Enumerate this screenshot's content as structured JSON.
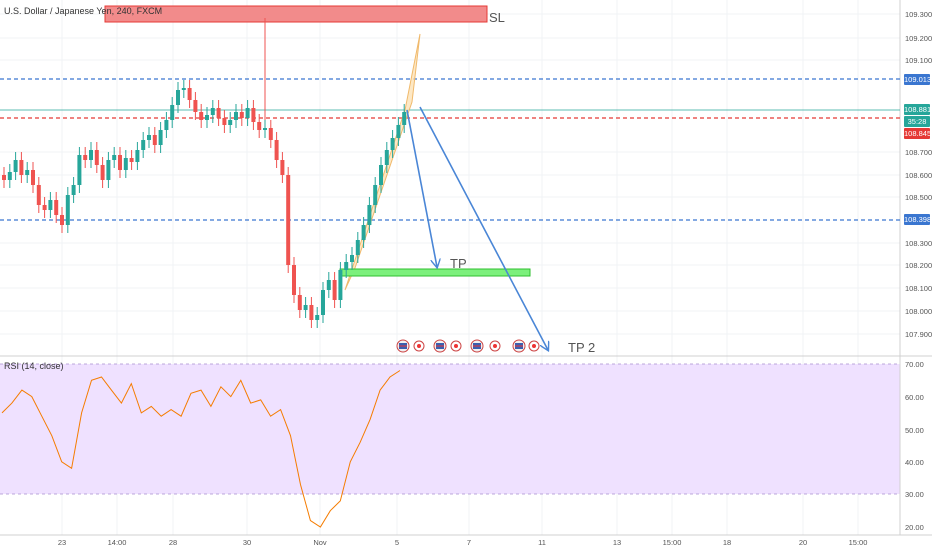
{
  "header": {
    "symbol": "U.S. Dollar / Japanese Yen, 240, FXCM"
  },
  "rsi": {
    "title": "RSI (14, close)"
  },
  "price_axis": {
    "ticks": [
      "109.300",
      "109.200",
      "109.100",
      "108.700",
      "108.600",
      "108.500",
      "108.300",
      "108.200",
      "108.100",
      "108.000",
      "107.900"
    ],
    "labels": [
      {
        "text": "109.013",
        "color": "#3a76d0"
      },
      {
        "text": "108.881",
        "color": "#26a69a"
      },
      {
        "text": "35:28",
        "color": "#26a69a"
      },
      {
        "text": "108.845",
        "color": "#e53935"
      },
      {
        "text": "108.398",
        "color": "#3a76d0"
      }
    ]
  },
  "rsi_axis": {
    "ticks": [
      "70.00",
      "60.00",
      "50.00",
      "40.00",
      "30.00",
      "20.00"
    ]
  },
  "time_axis": {
    "ticks": [
      "23",
      "14:00",
      "28",
      "30",
      "Nov",
      "5",
      "7",
      "11",
      "13",
      "15:00",
      "18",
      "20",
      "15:00"
    ]
  },
  "annotations": {
    "sl": "SL",
    "tp": "TP",
    "tp2": "TP 2"
  },
  "colors": {
    "up": "#26a69a",
    "down": "#ef5350",
    "rsi": "#f57c00",
    "rsi_band": "#efe1ff",
    "blue_line": "#3a76d0",
    "red_line": "#e53935",
    "arrow": "#4a86d6"
  },
  "chart_data": {
    "type": "line",
    "title": "U.S. Dollar / Japanese Yen, 240, FXCM",
    "series": [
      {
        "name": "RSI (14, close)",
        "values": [
          55,
          58,
          62,
          60,
          54,
          48,
          40,
          38,
          55,
          65,
          66,
          62,
          58,
          64,
          55,
          57,
          54,
          56,
          54,
          61,
          62,
          57,
          63,
          60,
          65,
          58,
          59,
          54,
          56,
          48,
          33,
          22,
          20,
          25,
          28,
          40,
          46,
          53,
          62,
          66,
          68
        ]
      }
    ],
    "ylim": [
      20,
      70
    ]
  }
}
